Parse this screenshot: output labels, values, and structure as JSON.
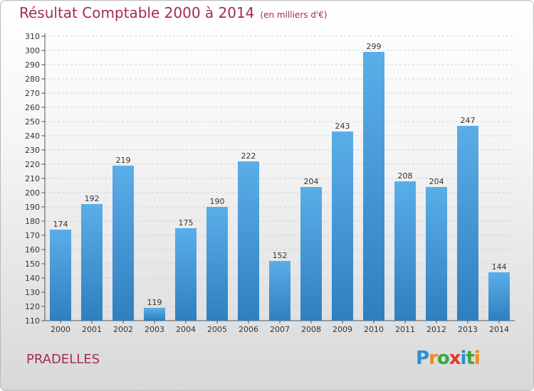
{
  "title": "Résultat Comptable 2000 à 2014",
  "subtitle": "(en milliers d'€)",
  "place": "PRADELLES",
  "logo": {
    "text": "Proxiti",
    "letters": [
      {
        "ch": "P",
        "color": "#2f8ed0"
      },
      {
        "ch": "r",
        "color": "#f08a1c"
      },
      {
        "ch": "o",
        "color": "#3aa83a"
      },
      {
        "ch": "x",
        "color": "#e8352e"
      },
      {
        "ch": "i",
        "color": "#2f8ed0"
      },
      {
        "ch": "t",
        "color": "#3aa83a"
      },
      {
        "ch": "i",
        "color": "#f08a1c"
      }
    ]
  },
  "colors": {
    "title": "#a42a58",
    "bar_top": "#5aaee8",
    "bar_bottom": "#2f7fbf",
    "grid": "#d0d0d0"
  },
  "chart_data": {
    "type": "bar",
    "title": "Résultat Comptable 2000 à 2014",
    "subtitle": "(en milliers d'€)",
    "xlabel": "",
    "ylabel": "",
    "categories": [
      "2000",
      "2001",
      "2002",
      "2003",
      "2004",
      "2005",
      "2006",
      "2007",
      "2008",
      "2009",
      "2010",
      "2011",
      "2012",
      "2013",
      "2014"
    ],
    "values": [
      174,
      192,
      219,
      119,
      175,
      190,
      222,
      152,
      204,
      243,
      299,
      208,
      204,
      247,
      144
    ],
    "ylim": [
      110,
      310
    ],
    "ytick_step": 10,
    "grid": true
  }
}
